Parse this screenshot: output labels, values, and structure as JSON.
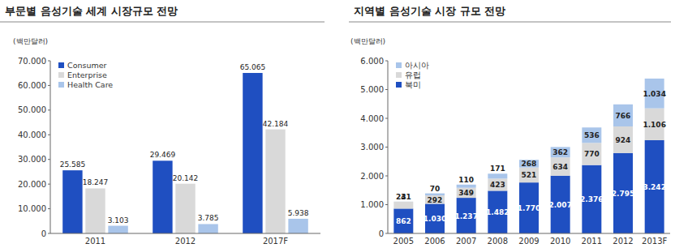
{
  "chart_data": [
    {
      "type": "bar",
      "title": "부문별 음성기술 세계 시장규모 전망",
      "y_label": "(백만달러)",
      "categories": [
        "2011",
        "2012",
        "2017F"
      ],
      "series": [
        {
          "name": "Consumer",
          "color": "#1f4fc1",
          "values": [
            25585,
            29469,
            65065
          ],
          "value_labels": [
            "25.585",
            "29.469",
            "65.065"
          ]
        },
        {
          "name": "Enterprise",
          "color": "#d9d9d9",
          "values": [
            18247,
            20142,
            42184
          ],
          "value_labels": [
            "18.247",
            "20.142",
            "42.184"
          ]
        },
        {
          "name": "Health Care",
          "color": "#a9c5ea",
          "values": [
            3103,
            3785,
            5938
          ],
          "value_labels": [
            "3.103",
            "3.785",
            "5.938"
          ]
        }
      ],
      "ylim": [
        0,
        70000
      ],
      "yticks": [
        0,
        {
          "value": 10000,
          "label": "10.000"
        },
        {
          "value": 20000,
          "label": "20.000"
        },
        {
          "value": 30000,
          "label": "30.000"
        },
        {
          "value": 40000,
          "label": "40.000"
        },
        {
          "value": 50000,
          "label": "50.000"
        },
        {
          "value": 60000,
          "label": "60.000"
        },
        {
          "value": 70000,
          "label": "70.000"
        }
      ],
      "grid": false,
      "legend": "top-left",
      "stacked": false,
      "data_labels": true
    },
    {
      "type": "bar",
      "title": "지역별 음성기술 시장 규모 전망",
      "y_label": "(백만달러)",
      "categories": [
        "2005",
        "2006",
        "2007",
        "2008",
        "2009",
        "2010",
        "2011",
        "2012",
        "2013F"
      ],
      "series": [
        {
          "name": "북미",
          "color": "#1f4fc1",
          "values": [
            862,
            1030,
            1237,
            1482,
            1770,
            2007,
            2376,
            2795,
            3242
          ],
          "value_labels": [
            "862",
            "1.030",
            "1.237",
            "1.482",
            "1.770",
            "2.007",
            "2.376",
            "2.795",
            "3.242"
          ]
        },
        {
          "name": "유럽",
          "color": "#d9d9d9",
          "values": [
            241,
            292,
            349,
            423,
            521,
            634,
            770,
            924,
            1106
          ],
          "value_labels": [
            "241",
            "292",
            "349",
            "423",
            "521",
            "634",
            "770",
            "924",
            "1.106"
          ]
        },
        {
          "name": "아시아",
          "color": "#a9c5ea",
          "values": [
            3,
            70,
            110,
            171,
            268,
            362,
            536,
            766,
            1034
          ],
          "value_labels": [
            "3",
            "70",
            "110",
            "171",
            "268",
            "362",
            "536",
            "766",
            "1.034"
          ]
        }
      ],
      "ylim": [
        0,
        6000
      ],
      "yticks": [
        0,
        {
          "value": 1000,
          "label": "1.000"
        },
        {
          "value": 2000,
          "label": "2.000"
        },
        {
          "value": 3000,
          "label": "3.000"
        },
        {
          "value": 4000,
          "label": "4.000"
        },
        {
          "value": 5000,
          "label": "5.000"
        },
        {
          "value": 6000,
          "label": "6.000"
        }
      ],
      "grid": false,
      "legend": "top-left",
      "stacked": true,
      "data_labels": true
    }
  ]
}
